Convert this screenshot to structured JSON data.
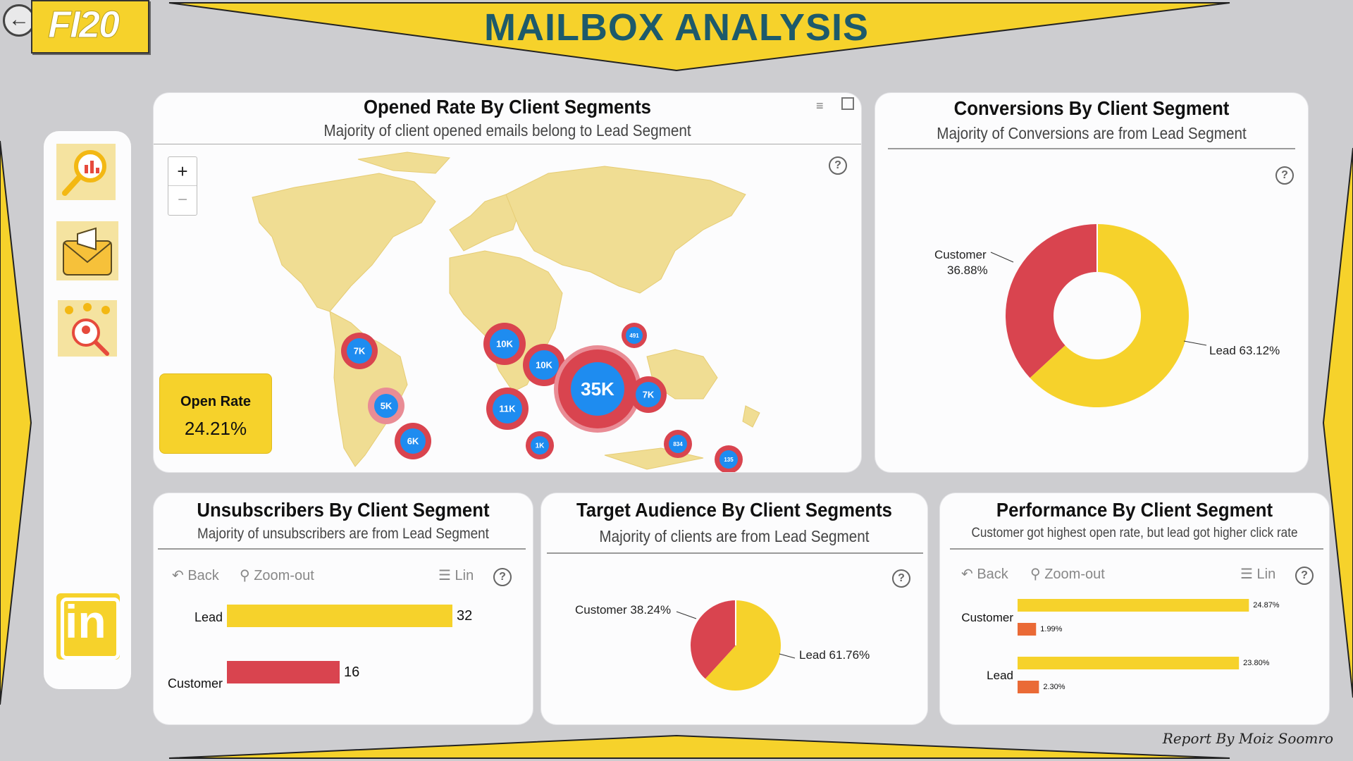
{
  "header": {
    "logo_text": "FI20",
    "title": "MAILBOX ANALYSIS"
  },
  "nav": {
    "items": [
      "analysis-icon",
      "mail-campaign-icon",
      "audience-icon"
    ],
    "linkedin_label": "in"
  },
  "colors": {
    "yellow": "#f6d22b",
    "red": "#d9444f",
    "blue": "#1e8cf0",
    "orange": "#ea6a36",
    "dark_teal": "#1d5a6b"
  },
  "map_card": {
    "title": "Opened Rate By Client Segments",
    "subtitle": "Majority of client opened emails belong to Lead Segment",
    "zoom_in": "+",
    "zoom_out": "−",
    "bubbles": [
      "7K",
      "10K",
      "491",
      "10K",
      "35K",
      "7K",
      "5K",
      "11K",
      "6K",
      "1K",
      "834",
      "135"
    ],
    "kpi_label": "Open Rate",
    "kpi_value": "24.21%"
  },
  "conversions_card": {
    "title": "Conversions By Client Segment",
    "subtitle": "Majority of Conversions are from Lead Segment",
    "label_customer": "Customer",
    "label_customer_pct": "36.88%",
    "label_lead": "Lead 63.12%"
  },
  "unsub_card": {
    "title": "Unsubscribers By Client Segment",
    "subtitle": "Majority of unsubscribers are from Lead Segment",
    "toolbar": {
      "back": "Back",
      "zoom": "Zoom-out",
      "lin": "Lin"
    },
    "rows": [
      {
        "label": "Lead",
        "value": "32"
      },
      {
        "label": "Customer",
        "value": "16"
      }
    ]
  },
  "target_card": {
    "title": "Target Audience By Client Segments",
    "subtitle": "Majority of clients are from Lead Segment",
    "label_customer": "Customer 38.24%",
    "label_lead": "Lead 61.76%"
  },
  "perf_card": {
    "title": "Performance By Client Segment",
    "subtitle": "Customer got highest open rate, but lead got higher click rate",
    "toolbar": {
      "back": "Back",
      "zoom": "Zoom-out",
      "lin": "Lin"
    },
    "rows": [
      {
        "label": "Customer",
        "open": "24.87%",
        "click": "1.99%"
      },
      {
        "label": "Lead",
        "open": "23.80%",
        "click": "2.30%"
      }
    ]
  },
  "footer": {
    "credit": "Report By Moiz Soomro"
  },
  "chart_data": [
    {
      "type": "pie",
      "title": "Conversions By Client Segment",
      "categories": [
        "Customer",
        "Lead"
      ],
      "values": [
        36.88,
        63.12
      ]
    },
    {
      "type": "bar",
      "title": "Unsubscribers By Client Segment",
      "categories": [
        "Lead",
        "Customer"
      ],
      "values": [
        32,
        16
      ]
    },
    {
      "type": "pie",
      "title": "Target Audience By Client Segments",
      "categories": [
        "Customer",
        "Lead"
      ],
      "values": [
        38.24,
        61.76
      ]
    },
    {
      "type": "bar",
      "title": "Performance By Client Segment",
      "categories": [
        "Customer",
        "Lead"
      ],
      "series": [
        {
          "values": [
            24.87,
            23.8
          ]
        },
        {
          "values": [
            1.99,
            2.3
          ]
        }
      ]
    }
  ]
}
